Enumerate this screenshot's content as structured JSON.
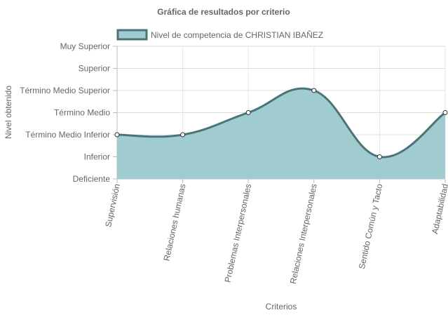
{
  "chart_data": {
    "type": "area",
    "title": "Gráfica de resultados por criterio",
    "xlabel": "Criterios",
    "ylabel": "Nivel obtenido",
    "categories": [
      "Supervisión",
      "Relaciones humanas",
      "Problemas Interpersonales",
      "Relaciones Interpersonales",
      "Sentido Común y Tacto",
      "Adaptabilidad"
    ],
    "y_levels": [
      "Deficiente",
      "Inferior",
      "Término Medio Inferior",
      "Término Medio",
      "Término Medio Superior",
      "Superior",
      "Muy Superior"
    ],
    "ylim": [
      0,
      6
    ],
    "grid": true,
    "legend_position": "top",
    "series": [
      {
        "name": "Nivel de competencia de CHRISTIAN IBAÑEZ",
        "values": [
          2,
          2,
          3,
          4,
          1,
          3
        ],
        "value_labels": [
          "Término Medio Inferior",
          "Término Medio Inferior",
          "Término Medio",
          "Término Medio Superior",
          "Inferior",
          "Término Medio"
        ],
        "fill_color": "#a0cbcf",
        "line_color": "#4b7479"
      }
    ]
  }
}
